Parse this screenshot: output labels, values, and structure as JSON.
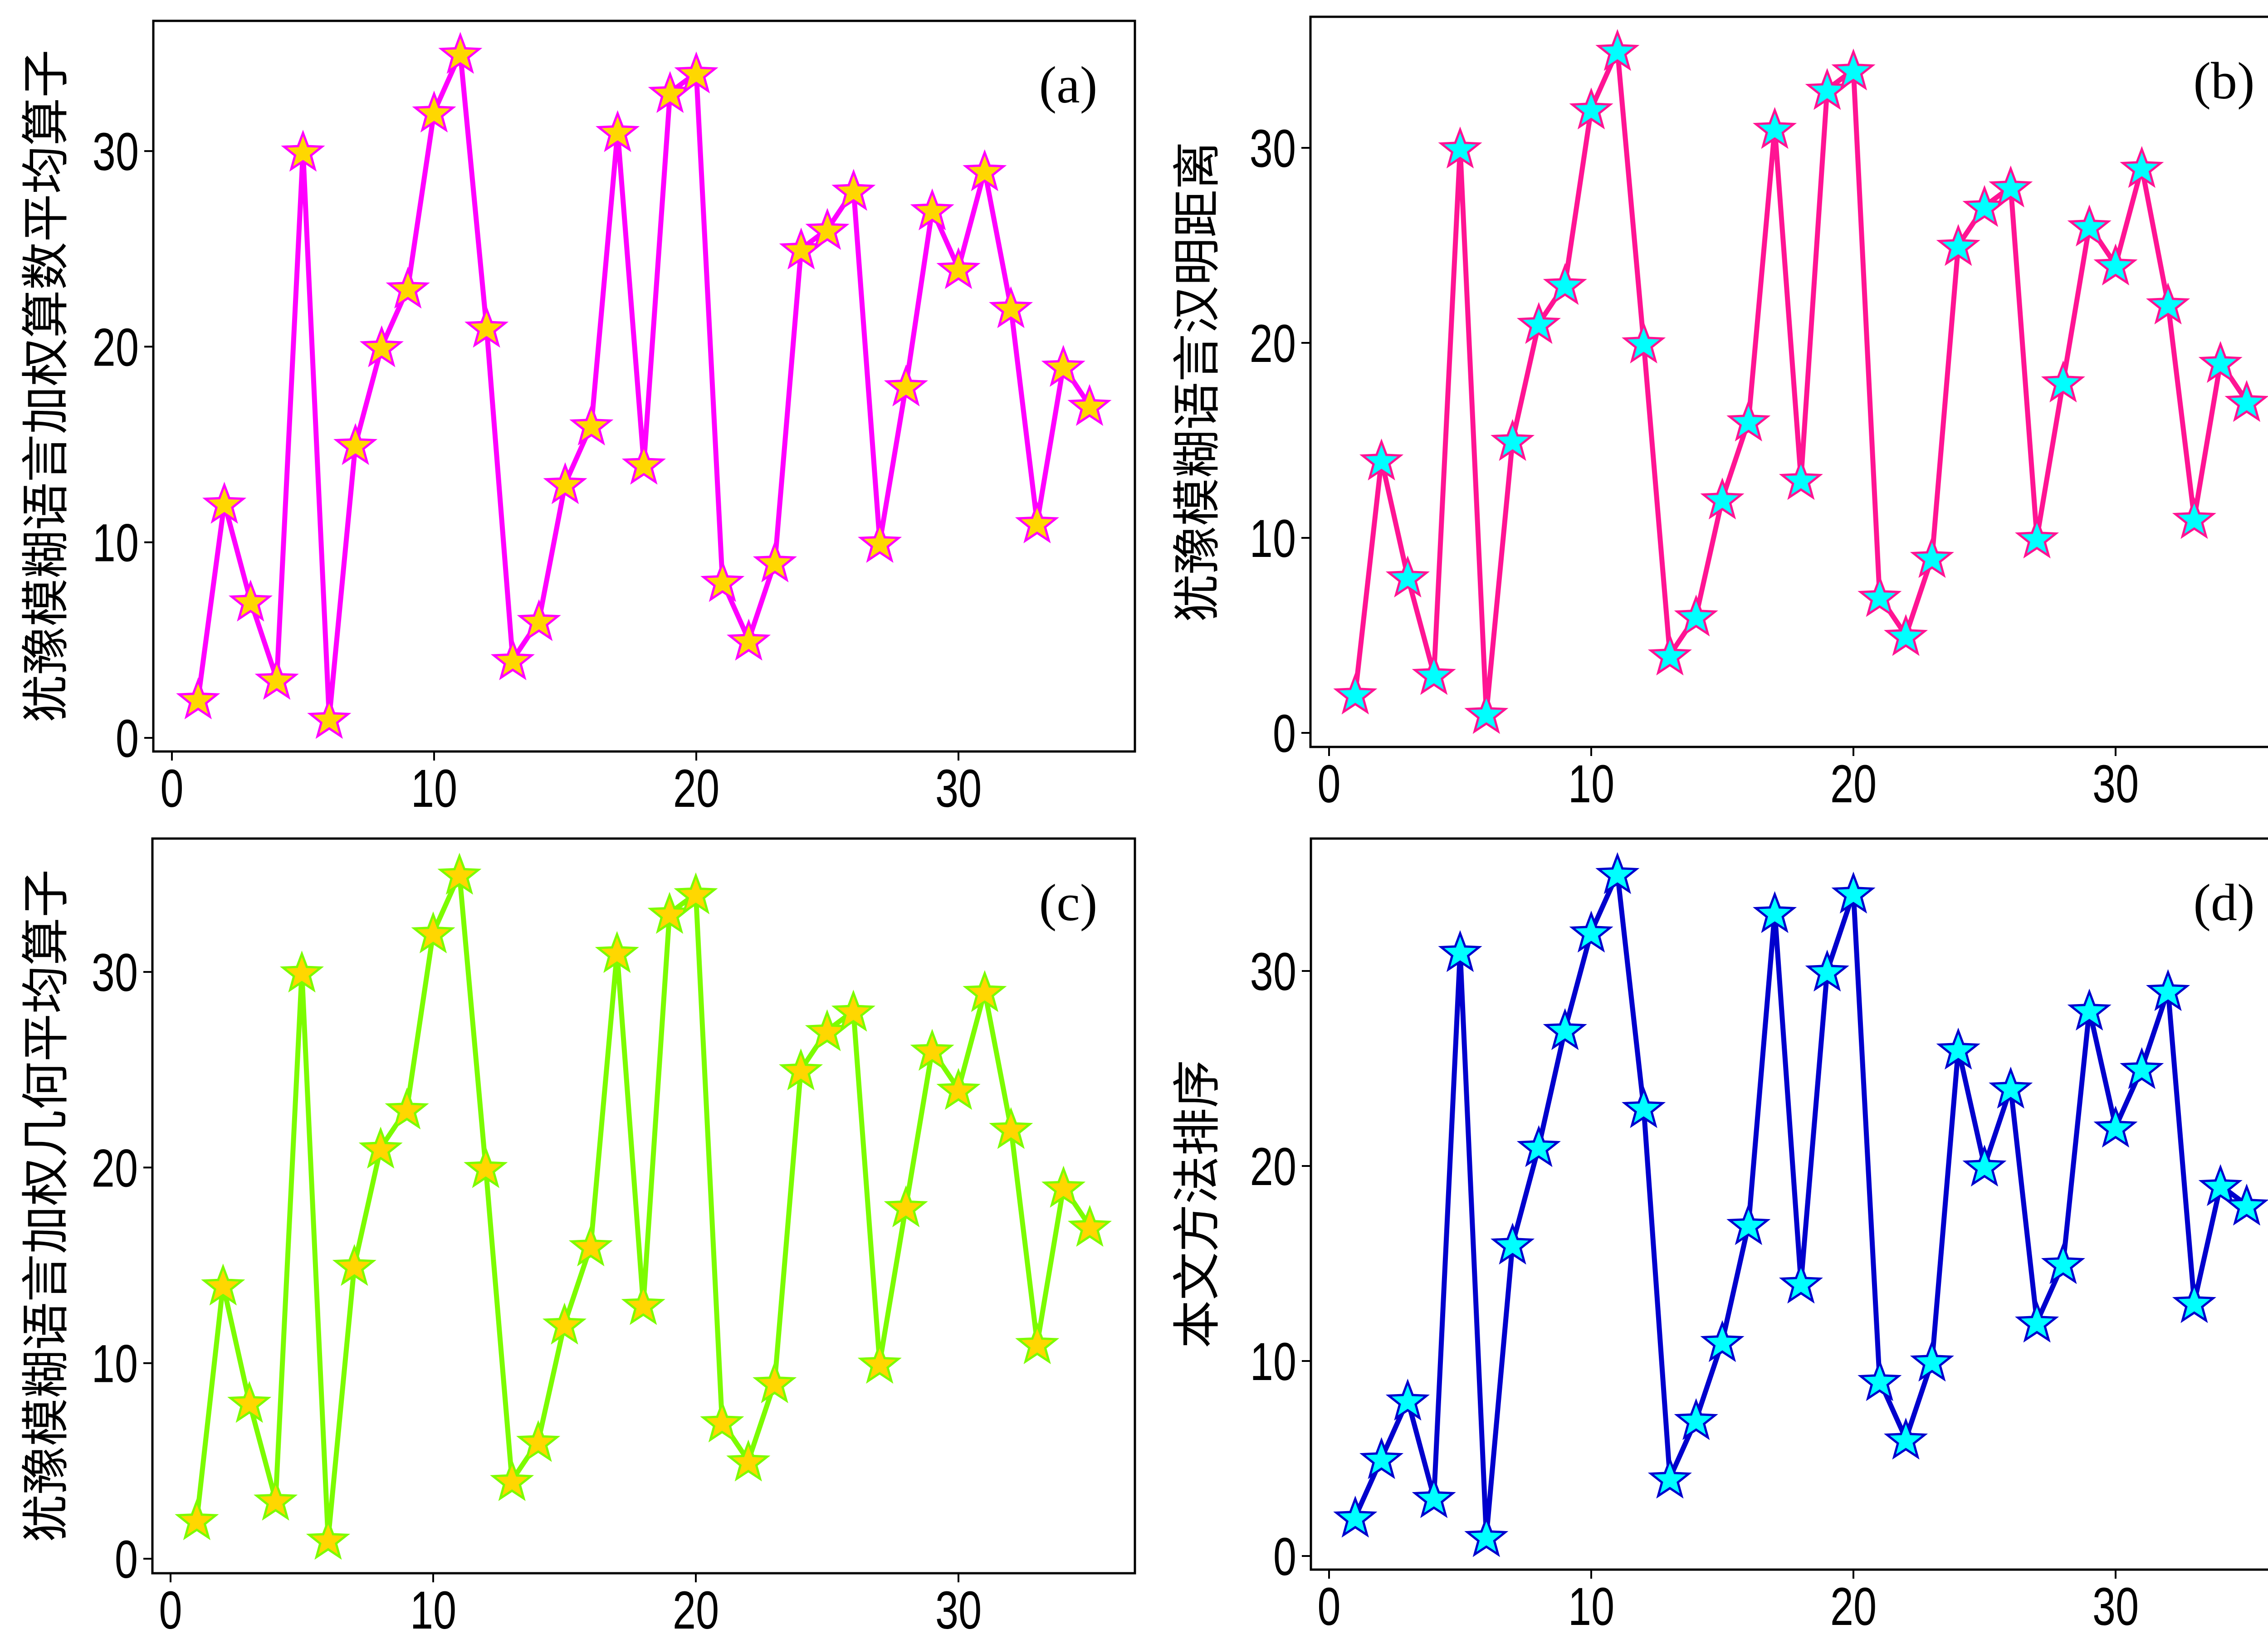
{
  "chart_data": [
    {
      "type": "line",
      "panel_tag": "(a)",
      "ylabel": "犹豫模糊语言加权算数平均算子",
      "xlabel": "",
      "x": [
        1,
        2,
        3,
        4,
        5,
        6,
        7,
        8,
        9,
        10,
        11,
        12,
        13,
        14,
        15,
        16,
        17,
        18,
        19,
        20,
        21,
        22,
        23,
        24,
        25,
        26,
        27,
        28,
        29,
        30,
        31,
        32,
        33,
        34,
        35
      ],
      "values": [
        2,
        12,
        7,
        3,
        30,
        1,
        15,
        20,
        23,
        32,
        35,
        21,
        4,
        6,
        13,
        16,
        31,
        14,
        33,
        34,
        8,
        5,
        9,
        25,
        26,
        28,
        10,
        18,
        27,
        24,
        29,
        22,
        11,
        19,
        17
      ],
      "xlim": [
        -0.7,
        36.7
      ],
      "ylim": [
        -0.7,
        37.3
      ],
      "xticks": [
        "0",
        "10",
        "20",
        "30"
      ],
      "yticks": [
        "0",
        "10",
        "20",
        "30"
      ],
      "marker": "star",
      "line_color": "#FF00FF",
      "marker_fill": "#FFD700",
      "marker_edge": "#FF00FF",
      "grid": false,
      "legend": "none"
    },
    {
      "type": "line",
      "panel_tag": "(b)",
      "ylabel": "犹豫模糊语言汉明距离",
      "xlabel": "",
      "x": [
        1,
        2,
        3,
        4,
        5,
        6,
        7,
        8,
        9,
        10,
        11,
        12,
        13,
        14,
        15,
        16,
        17,
        18,
        19,
        20,
        21,
        22,
        23,
        24,
        25,
        26,
        27,
        28,
        29,
        30,
        31,
        32,
        33,
        34,
        35
      ],
      "values": [
        2,
        14,
        8,
        3,
        30,
        1,
        15,
        21,
        23,
        32,
        35,
        20,
        4,
        6,
        12,
        16,
        31,
        13,
        33,
        34,
        7,
        5,
        9,
        25,
        27,
        28,
        10,
        18,
        26,
        24,
        29,
        22,
        11,
        19,
        17
      ],
      "xlim": [
        -0.7,
        36.7
      ],
      "ylim": [
        -0.7,
        37.6
      ],
      "xticks": [
        "0",
        "10",
        "20",
        "30"
      ],
      "yticks": [
        "0",
        "10",
        "20",
        "30"
      ],
      "marker": "star",
      "line_color": "#FF1493",
      "marker_fill": "#00FFFF",
      "marker_edge": "#FF1493",
      "grid": false,
      "legend": "none"
    },
    {
      "type": "line",
      "panel_tag": "(c)",
      "ylabel": "犹豫模糊语言加权几何平均算子",
      "xlabel": "",
      "x": [
        1,
        2,
        3,
        4,
        5,
        6,
        7,
        8,
        9,
        10,
        11,
        12,
        13,
        14,
        15,
        16,
        17,
        18,
        19,
        20,
        21,
        22,
        23,
        24,
        25,
        26,
        27,
        28,
        29,
        30,
        31,
        32,
        33,
        34,
        35
      ],
      "values": [
        2,
        14,
        8,
        3,
        30,
        1,
        15,
        21,
        23,
        32,
        35,
        20,
        4,
        6,
        12,
        16,
        31,
        13,
        33,
        34,
        7,
        5,
        9,
        25,
        27,
        28,
        10,
        18,
        26,
        24,
        29,
        22,
        11,
        19,
        17
      ],
      "xlim": [
        -0.7,
        36.7
      ],
      "ylim": [
        -0.7,
        37.3
      ],
      "xticks": [
        "0",
        "10",
        "20",
        "30"
      ],
      "yticks": [
        "0",
        "10",
        "20",
        "30"
      ],
      "marker": "star",
      "line_color": "#7CFC00",
      "marker_fill": "#FFD700",
      "marker_edge": "#7CFC00",
      "grid": false,
      "legend": "none"
    },
    {
      "type": "line",
      "panel_tag": "(d)",
      "ylabel": "本文方法排序",
      "xlabel": "",
      "x": [
        1,
        2,
        3,
        4,
        5,
        6,
        7,
        8,
        9,
        10,
        11,
        12,
        13,
        14,
        15,
        16,
        17,
        18,
        19,
        20,
        21,
        22,
        23,
        24,
        25,
        26,
        27,
        28,
        29,
        30,
        31,
        32,
        33,
        34,
        35
      ],
      "values": [
        2,
        5,
        8,
        3,
        31,
        1,
        16,
        21,
        27,
        32,
        35,
        23,
        4,
        7,
        11,
        17,
        33,
        14,
        30,
        34,
        9,
        6,
        10,
        26,
        20,
        24,
        12,
        15,
        28,
        22,
        25,
        29,
        13,
        19,
        18
      ],
      "xlim": [
        -0.7,
        36.7
      ],
      "ylim": [
        -0.7,
        37.3
      ],
      "xticks": [
        "0",
        "10",
        "20",
        "30"
      ],
      "yticks": [
        "0",
        "10",
        "20",
        "30"
      ],
      "marker": "star",
      "line_color": "#0000CD",
      "marker_fill": "#00FFFF",
      "marker_edge": "#0000CD",
      "grid": false,
      "legend": "none"
    }
  ]
}
